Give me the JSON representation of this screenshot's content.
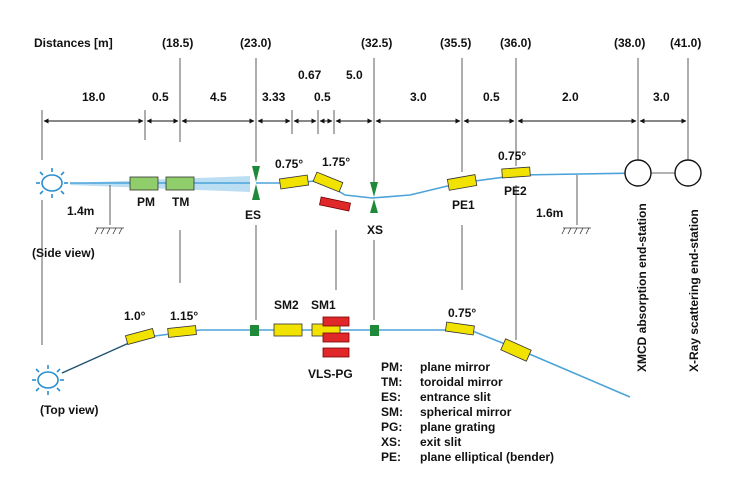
{
  "distances_label": "Distances [m]",
  "positions": [
    "(18.5)",
    "(23.0)",
    "(32.5)",
    "(35.5)",
    "(36.0)",
    "(38.0)",
    "(41.0)"
  ],
  "segments": [
    "18.0",
    "0.5",
    "4.5",
    "3.33",
    "0.67",
    "0.5",
    "5.0",
    "3.0",
    "0.5",
    "2.0",
    "3.0"
  ],
  "side_view": {
    "label": "(Side view)",
    "height_left": "1.4m",
    "height_right": "1.6m",
    "angles": [
      "0.75°",
      "1.75°",
      "0.75°"
    ],
    "components": [
      "PM",
      "TM",
      "ES",
      "XS",
      "PE1",
      "PE2"
    ]
  },
  "top_view": {
    "label": "(Top view)",
    "angles": [
      "1.0°",
      "1.15°",
      "0.75°"
    ],
    "components": [
      "SM2",
      "SM1",
      "VLS-PG"
    ]
  },
  "end_stations": [
    "XMCD absorption end-station",
    "X-Ray scattering end-station"
  ],
  "legend": [
    {
      "abbr": "PM:",
      "text": "plane mirror"
    },
    {
      "abbr": "TM:",
      "text": "toroidal mirror"
    },
    {
      "abbr": "ES:",
      "text": "entrance slit"
    },
    {
      "abbr": "SM:",
      "text": "spherical mirror"
    },
    {
      "abbr": "PG:",
      "text": "plane grating"
    },
    {
      "abbr": "XS:",
      "text": "exit slit"
    },
    {
      "abbr": "PE:",
      "text": "plane elliptical (bender)"
    }
  ],
  "colors": {
    "mirror": "#f2e200",
    "plane_mirror": "#8fce6a",
    "grating": "#e0282a",
    "slit": "#1f8a3a",
    "beam": "#4ba3d9"
  }
}
